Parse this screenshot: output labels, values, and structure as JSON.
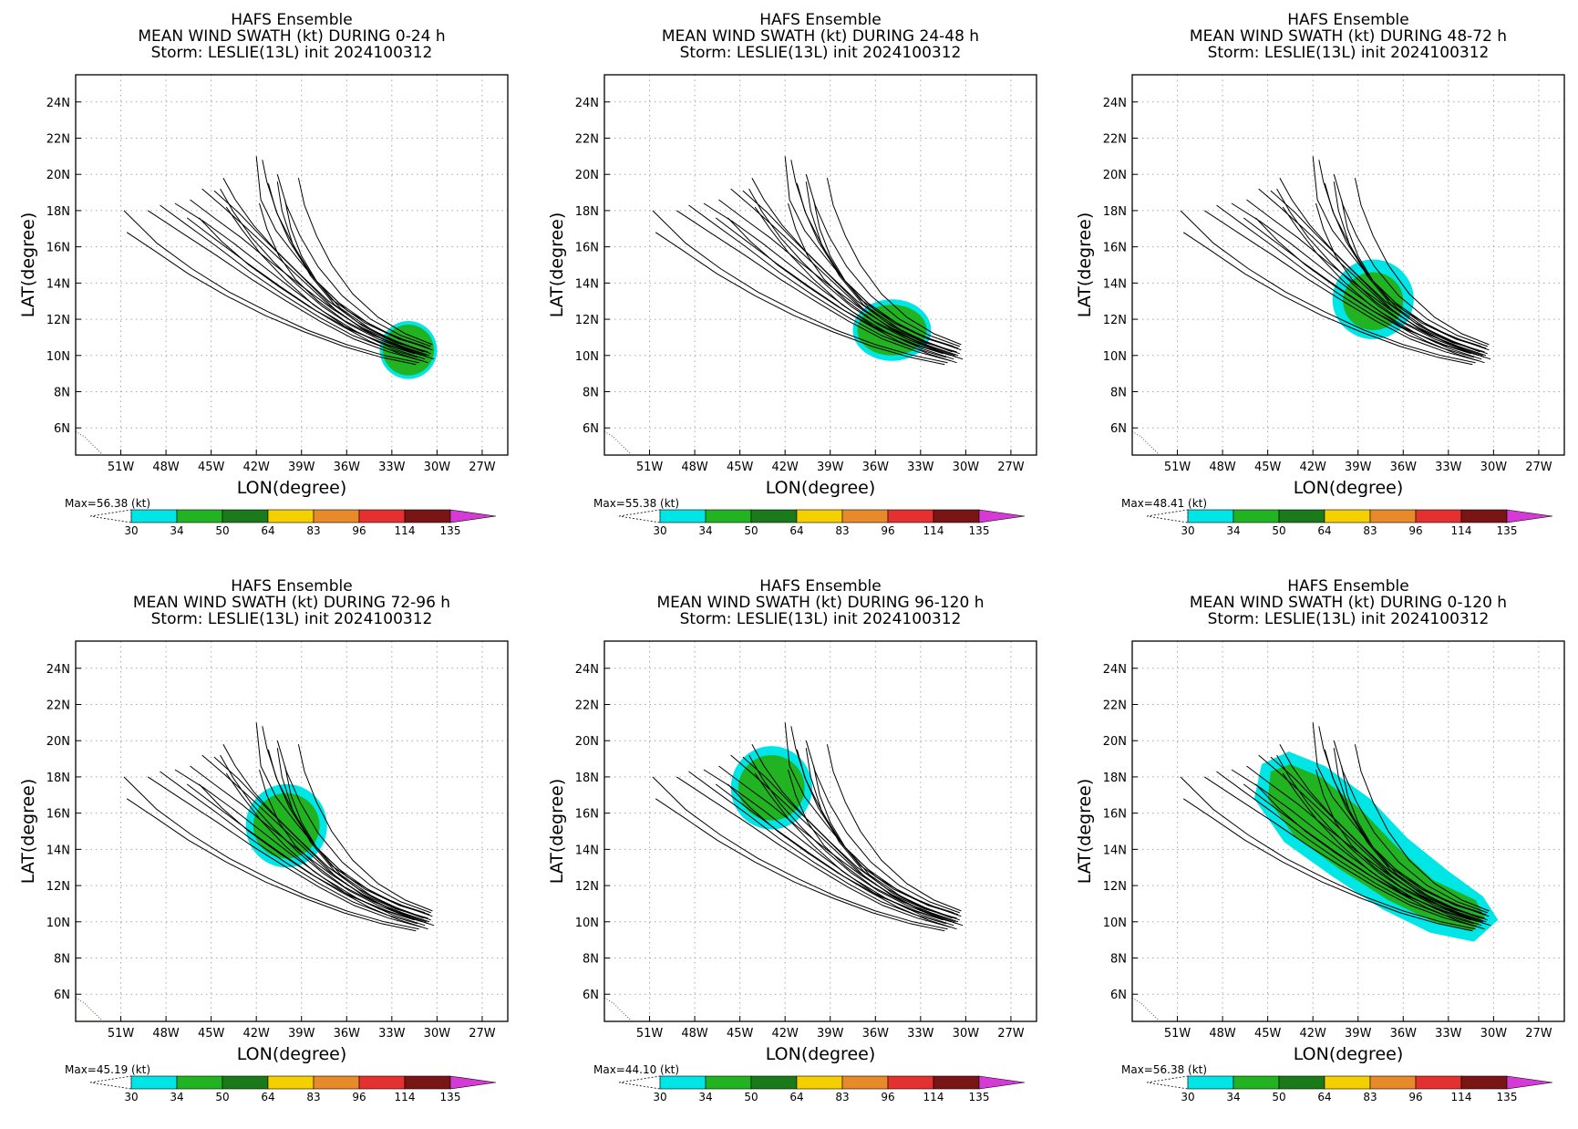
{
  "figure": {
    "panels": [
      {
        "title1": "HAFS Ensemble",
        "title2": "MEAN WIND SWATH (kt) DURING  0-24 h",
        "title3": "Storm: LESLIE(13L) init 2024100312",
        "max_label": "Max=56.38 (kt)"
      },
      {
        "title1": "HAFS Ensemble",
        "title2": "MEAN WIND SWATH (kt) DURING 24-48 h",
        "title3": "Storm: LESLIE(13L) init 2024100312",
        "max_label": "Max=55.38 (kt)"
      },
      {
        "title1": "HAFS Ensemble",
        "title2": "MEAN WIND SWATH (kt) DURING 48-72 h",
        "title3": "Storm: LESLIE(13L) init 2024100312",
        "max_label": "Max=48.41 (kt)"
      },
      {
        "title1": "HAFS Ensemble",
        "title2": "MEAN WIND SWATH (kt) DURING 72-96 h",
        "title3": "Storm: LESLIE(13L) init 2024100312",
        "max_label": "Max=45.19 (kt)"
      },
      {
        "title1": "HAFS Ensemble",
        "title2": "MEAN WIND SWATH (kt) DURING 96-120 h",
        "title3": "Storm: LESLIE(13L) init 2024100312",
        "max_label": "Max=44.10 (kt)"
      },
      {
        "title1": "HAFS Ensemble",
        "title2": "MEAN WIND SWATH (kt) DURING 0-120 h",
        "title3": "Storm: LESLIE(13L) init 2024100312",
        "max_label": "Max=56.38 (kt)"
      }
    ]
  },
  "chart_data": {
    "type": "map-swath",
    "xlabel": "LON(degree)",
    "ylabel": "LAT(degree)",
    "xlim": [
      -54,
      -25.3
    ],
    "ylim": [
      4.5,
      25.5
    ],
    "x_ticks": [
      -51,
      -48,
      -45,
      -42,
      -39,
      -36,
      -33,
      -30,
      -27
    ],
    "x_tick_labels": [
      "51W",
      "48W",
      "45W",
      "42W",
      "39W",
      "36W",
      "33W",
      "30W",
      "27W"
    ],
    "y_ticks": [
      6,
      8,
      10,
      12,
      14,
      16,
      18,
      20,
      22,
      24
    ],
    "y_tick_labels": [
      "6N",
      "8N",
      "10N",
      "12N",
      "14N",
      "16N",
      "18N",
      "20N",
      "22N",
      "24N"
    ],
    "grid": true,
    "colorbar": {
      "thresholds": [
        30,
        34,
        50,
        64,
        83,
        96,
        114,
        135
      ],
      "colors": [
        "#00e5e5",
        "#22b322",
        "#1a7a1a",
        "#f5d000",
        "#e88a2a",
        "#e53030",
        "#7a1515",
        "#d63ad6"
      ]
    },
    "coastline": [
      [
        -54,
        5.8
      ],
      [
        -53.4,
        5.5
      ],
      [
        -52.8,
        5.0
      ],
      [
        -52.3,
        4.6
      ]
    ],
    "tracks": [
      [
        [
          -30.3,
          10.3
        ],
        [
          -32,
          10.8
        ],
        [
          -34,
          11.5
        ],
        [
          -36,
          12.5
        ],
        [
          -38,
          14.1
        ],
        [
          -39.3,
          15.4
        ],
        [
          -40.7,
          16.9
        ],
        [
          -41.7,
          18.6
        ],
        [
          -42,
          21.0
        ]
      ],
      [
        [
          -30.4,
          10.1
        ],
        [
          -32.2,
          10.6
        ],
        [
          -34.3,
          11.4
        ],
        [
          -36.4,
          12.6
        ],
        [
          -38.2,
          14.3
        ],
        [
          -39.5,
          16.0
        ],
        [
          -40.6,
          17.8
        ],
        [
          -41.3,
          19.6
        ],
        [
          -41.6,
          20.8
        ]
      ],
      [
        [
          -30.5,
          10.4
        ],
        [
          -32.5,
          10.9
        ],
        [
          -34.8,
          11.8
        ],
        [
          -37.0,
          13.1
        ],
        [
          -38.5,
          14.6
        ],
        [
          -39.8,
          16.3
        ],
        [
          -40.7,
          18.0
        ],
        [
          -41.2,
          19.5
        ]
      ],
      [
        [
          -30.6,
          9.9
        ],
        [
          -32.6,
          10.5
        ],
        [
          -34.6,
          11.3
        ],
        [
          -36.6,
          12.4
        ],
        [
          -38.3,
          13.8
        ],
        [
          -40.0,
          15.2
        ],
        [
          -41.7,
          16.6
        ],
        [
          -43.2,
          17.9
        ],
        [
          -44.8,
          19.1
        ]
      ],
      [
        [
          -30.7,
          10.0
        ],
        [
          -32.8,
          10.6
        ],
        [
          -35.0,
          11.5
        ],
        [
          -37.2,
          12.8
        ],
        [
          -39.0,
          14.2
        ],
        [
          -40.8,
          15.6
        ],
        [
          -42.6,
          17.0
        ],
        [
          -44.2,
          18.2
        ],
        [
          -45.6,
          19.2
        ]
      ],
      [
        [
          -30.8,
          9.8
        ],
        [
          -33.0,
          10.4
        ],
        [
          -35.3,
          11.3
        ],
        [
          -37.5,
          12.4
        ],
        [
          -39.5,
          13.6
        ],
        [
          -41.5,
          14.9
        ],
        [
          -43.5,
          16.2
        ],
        [
          -45.5,
          17.4
        ],
        [
          -47.4,
          18.4
        ]
      ],
      [
        [
          -31.0,
          9.7
        ],
        [
          -33.2,
          10.2
        ],
        [
          -35.5,
          10.9
        ],
        [
          -37.8,
          11.9
        ],
        [
          -40.0,
          13.0
        ],
        [
          -42.3,
          14.2
        ],
        [
          -44.6,
          15.5
        ],
        [
          -47.0,
          16.8
        ],
        [
          -49.2,
          18.0
        ]
      ],
      [
        [
          -31.2,
          9.6
        ],
        [
          -33.5,
          10.0
        ],
        [
          -36.0,
          10.6
        ],
        [
          -38.6,
          11.4
        ],
        [
          -41.2,
          12.4
        ],
        [
          -43.8,
          13.5
        ],
        [
          -46.3,
          14.8
        ],
        [
          -48.6,
          16.2
        ],
        [
          -50.8,
          18.0
        ]
      ],
      [
        [
          -31.4,
          9.5
        ],
        [
          -33.7,
          9.9
        ],
        [
          -36.2,
          10.5
        ],
        [
          -38.8,
          11.3
        ],
        [
          -41.4,
          12.2
        ],
        [
          -44.0,
          13.3
        ],
        [
          -46.5,
          14.5
        ],
        [
          -48.8,
          15.8
        ],
        [
          -50.6,
          16.8
        ]
      ],
      [
        [
          -30.9,
          10.2
        ],
        [
          -32.9,
          10.8
        ],
        [
          -34.9,
          11.6
        ],
        [
          -36.8,
          12.8
        ],
        [
          -38.4,
          14.4
        ],
        [
          -39.6,
          16.2
        ],
        [
          -40.3,
          18.0
        ],
        [
          -40.6,
          19.6
        ]
      ],
      [
        [
          -30.4,
          10.5
        ],
        [
          -32.4,
          11.1
        ],
        [
          -34.4,
          12.0
        ],
        [
          -36.3,
          13.3
        ],
        [
          -37.9,
          14.9
        ],
        [
          -39.1,
          16.6
        ],
        [
          -40.0,
          18.3
        ],
        [
          -40.6,
          20.0
        ]
      ],
      [
        [
          -31.1,
          10.3
        ],
        [
          -33.1,
          10.9
        ],
        [
          -35.2,
          11.8
        ],
        [
          -37.2,
          13.0
        ],
        [
          -39.0,
          14.4
        ],
        [
          -40.7,
          15.8
        ],
        [
          -42.2,
          17.2
        ],
        [
          -43.4,
          18.6
        ],
        [
          -44.2,
          19.8
        ]
      ],
      [
        [
          -30.6,
          10.2
        ],
        [
          -32.7,
          10.7
        ],
        [
          -34.9,
          11.5
        ],
        [
          -37.0,
          12.6
        ],
        [
          -39.1,
          13.9
        ],
        [
          -41.1,
          15.2
        ],
        [
          -43.0,
          16.5
        ],
        [
          -44.8,
          17.6
        ],
        [
          -46.4,
          18.6
        ]
      ],
      [
        [
          -31.3,
          9.9
        ],
        [
          -33.4,
          10.4
        ],
        [
          -35.6,
          11.1
        ],
        [
          -37.8,
          12.1
        ],
        [
          -40.1,
          13.3
        ],
        [
          -42.4,
          14.6
        ],
        [
          -44.6,
          16.0
        ],
        [
          -46.6,
          17.2
        ],
        [
          -48.4,
          18.3
        ]
      ],
      [
        [
          -30.3,
          10.6
        ],
        [
          -32.1,
          11.2
        ],
        [
          -33.9,
          12.1
        ],
        [
          -35.6,
          13.4
        ],
        [
          -37.0,
          15.0
        ],
        [
          -38.0,
          16.6
        ],
        [
          -38.8,
          18.3
        ],
        [
          -39.2,
          19.8
        ]
      ],
      [
        [
          -30.5,
          10.0
        ],
        [
          -32.3,
          10.5
        ],
        [
          -34.2,
          11.1
        ],
        [
          -36.1,
          11.9
        ],
        [
          -37.9,
          13.0
        ],
        [
          -39.4,
          14.2
        ],
        [
          -40.5,
          15.5
        ],
        [
          -41.3,
          17.0
        ],
        [
          -41.8,
          18.4
        ]
      ],
      [
        [
          -31.5,
          10.1
        ],
        [
          -33.8,
          10.7
        ],
        [
          -36.1,
          11.6
        ],
        [
          -38.2,
          12.8
        ],
        [
          -40.1,
          14.2
        ],
        [
          -41.7,
          15.6
        ],
        [
          -43.0,
          17.0
        ],
        [
          -44.0,
          18.2
        ]
      ],
      [
        [
          -30.2,
          9.8
        ],
        [
          -32.0,
          10.3
        ],
        [
          -33.9,
          10.9
        ],
        [
          -35.8,
          11.7
        ],
        [
          -37.6,
          12.7
        ],
        [
          -39.3,
          13.9
        ],
        [
          -40.9,
          15.2
        ],
        [
          -42.3,
          16.5
        ],
        [
          -43.5,
          17.9
        ],
        [
          -44.4,
          19.2
        ]
      ],
      [
        [
          -30.8,
          10.5
        ],
        [
          -32.7,
          11.0
        ],
        [
          -34.6,
          11.8
        ],
        [
          -36.5,
          12.9
        ],
        [
          -38.0,
          14.1
        ],
        [
          -39.0,
          15.5
        ],
        [
          -39.7,
          17.0
        ],
        [
          -40.1,
          18.6
        ]
      ],
      [
        [
          -31.0,
          10.0
        ],
        [
          -33.3,
          10.6
        ],
        [
          -35.7,
          11.4
        ],
        [
          -38.1,
          12.5
        ],
        [
          -40.4,
          13.8
        ],
        [
          -42.6,
          15.1
        ],
        [
          -44.7,
          16.4
        ],
        [
          -46.6,
          17.6
        ]
      ],
      [
        [
          -30.6,
          9.6
        ],
        [
          -32.5,
          10.1
        ],
        [
          -34.5,
          10.8
        ],
        [
          -36.5,
          11.7
        ],
        [
          -38.5,
          12.7
        ],
        [
          -40.5,
          13.8
        ],
        [
          -42.5,
          15.0
        ],
        [
          -44.3,
          16.3
        ],
        [
          -45.8,
          17.6
        ]
      ]
    ],
    "panels": [
      {
        "period": "0-24 h",
        "max_kt": 56.38,
        "swath": [
          {
            "level": 34,
            "cx": -31.9,
            "cy": 10.3,
            "rx": 1.7,
            "ry": 1.4
          },
          {
            "level": 30,
            "cx": -31.9,
            "cy": 10.3,
            "rx": 1.9,
            "ry": 1.6
          }
        ]
      },
      {
        "period": "24-48 h",
        "max_kt": 55.38,
        "swath": [
          {
            "level": 34,
            "cx": -34.9,
            "cy": 11.4,
            "rx": 2.3,
            "ry": 1.4
          },
          {
            "level": 30,
            "cx": -34.9,
            "cy": 11.4,
            "rx": 2.6,
            "ry": 1.7
          }
        ]
      },
      {
        "period": "48-72 h",
        "max_kt": 48.41,
        "swath": [
          {
            "level": 34,
            "cx": -38.0,
            "cy": 13.0,
            "rx": 2.0,
            "ry": 1.6
          },
          {
            "level": 30,
            "cx": -38.0,
            "cy": 13.1,
            "rx": 2.7,
            "ry": 2.2
          }
        ]
      },
      {
        "period": "72-96 h",
        "max_kt": 45.19,
        "swath": [
          {
            "level": 34,
            "cx": -40.0,
            "cy": 15.3,
            "rx": 2.2,
            "ry": 1.8
          },
          {
            "level": 30,
            "cx": -40.0,
            "cy": 15.3,
            "rx": 2.7,
            "ry": 2.3
          }
        ]
      },
      {
        "period": "96-120 h",
        "max_kt": 44.1,
        "swath": [
          {
            "level": 34,
            "cx": -42.9,
            "cy": 17.4,
            "rx": 2.2,
            "ry": 1.8
          },
          {
            "level": 30,
            "cx": -42.9,
            "cy": 17.4,
            "rx": 2.7,
            "ry": 2.3
          }
        ]
      },
      {
        "period": "0-120 h",
        "max_kt": 56.38,
        "swath": [
          {
            "level": 34,
            "path": [
              [
                -44.8,
                18.3
              ],
              [
                -43.5,
                18.7
              ],
              [
                -41.5,
                18.0
              ],
              [
                -38.8,
                16.2
              ],
              [
                -36.5,
                14.2
              ],
              [
                -34.0,
                12.3
              ],
              [
                -31.2,
                11.2
              ],
              [
                -30.6,
                10.3
              ],
              [
                -31.4,
                9.5
              ],
              [
                -34.0,
                10.0
              ],
              [
                -37.0,
                11.2
              ],
              [
                -40.2,
                12.9
              ],
              [
                -43.2,
                14.7
              ],
              [
                -45.0,
                16.8
              ]
            ]
          },
          {
            "level": 30,
            "path": [
              [
                -45.4,
                18.7
              ],
              [
                -43.6,
                19.4
              ],
              [
                -41.2,
                18.6
              ],
              [
                -38.2,
                16.8
              ],
              [
                -35.7,
                14.6
              ],
              [
                -33.0,
                12.8
              ],
              [
                -30.7,
                11.4
              ],
              [
                -29.7,
                10.1
              ],
              [
                -31.3,
                8.9
              ],
              [
                -34.2,
                9.4
              ],
              [
                -37.4,
                10.7
              ],
              [
                -40.7,
                12.5
              ],
              [
                -43.9,
                14.4
              ],
              [
                -45.9,
                16.8
              ]
            ]
          }
        ]
      }
    ]
  }
}
